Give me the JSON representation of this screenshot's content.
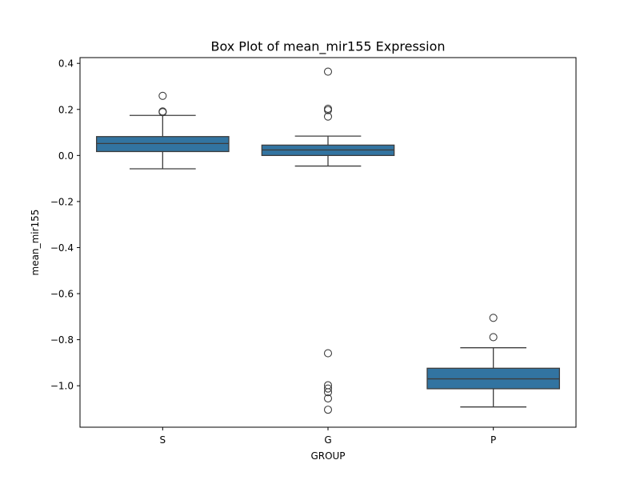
{
  "chart_data": {
    "type": "box",
    "title": "Box Plot of mean_mir155 Expression",
    "xlabel": "GROUP",
    "ylabel": "mean_mir155",
    "ylim": [
      -1.18,
      0.425
    ],
    "yticks": [
      0.4,
      0.2,
      0.0,
      -0.2,
      -0.4,
      -0.6,
      -0.8,
      -1.0
    ],
    "ytick_labels": [
      "0.4",
      "0.2",
      "0.0",
      "−0.2",
      "−0.4",
      "−0.6",
      "−0.8",
      "−1.0"
    ],
    "grid": false,
    "box_color": "#3274a1",
    "line_color": "#3d3d3d",
    "categories": [
      "S",
      "G",
      "P"
    ],
    "boxes": [
      {
        "category": "S",
        "whisker_low": -0.058,
        "q1": 0.017,
        "median": 0.052,
        "q3": 0.082,
        "whisker_high": 0.174,
        "outliers": [
          0.259,
          0.191,
          0.188
        ]
      },
      {
        "category": "G",
        "whisker_low": -0.046,
        "q1": 0.0,
        "median": 0.024,
        "q3": 0.045,
        "whisker_high": 0.084,
        "outliers": [
          0.364,
          0.203,
          0.197,
          0.169,
          -0.859,
          -0.998,
          -1.012,
          -1.028,
          -1.055,
          -1.104
        ]
      },
      {
        "category": "P",
        "whisker_low": -1.092,
        "q1": -1.013,
        "median": -0.97,
        "q3": -0.924,
        "whisker_high": -0.835,
        "outliers": [
          -0.705,
          -0.789
        ]
      }
    ]
  }
}
